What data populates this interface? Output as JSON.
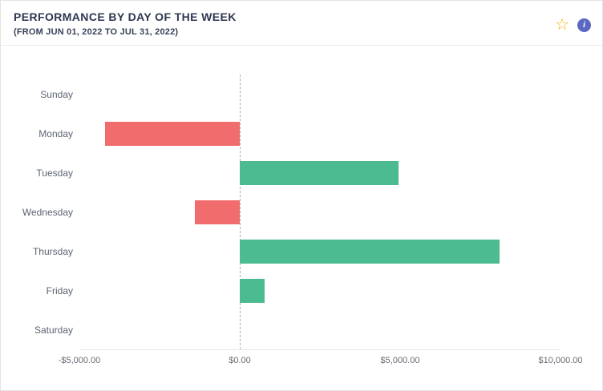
{
  "header": {
    "title": "PERFORMANCE BY DAY OF THE WEEK",
    "subtitle": "(FROM JUN 01, 2022 TO JUL 31, 2022)"
  },
  "toolbar": {
    "star_glyph": "☆",
    "info_glyph": "i"
  },
  "chart_data": {
    "type": "bar",
    "orientation": "horizontal",
    "title": "PERFORMANCE BY DAY OF THE WEEK",
    "subtitle": "(FROM JUN 01, 2022 TO JUL 31, 2022)",
    "categories": [
      "Sunday",
      "Monday",
      "Tuesday",
      "Wednesday",
      "Thursday",
      "Friday",
      "Saturday"
    ],
    "values": [
      0,
      -4200,
      4950,
      -1400,
      8100,
      775,
      0
    ],
    "xlim": [
      -5000,
      10000
    ],
    "x_ticks": [
      {
        "value": -5000,
        "label": "-$5,000.00"
      },
      {
        "value": 0,
        "label": "$0.00"
      },
      {
        "value": 5000,
        "label": "$5,000.00"
      },
      {
        "value": 10000,
        "label": "$10,000.00"
      }
    ],
    "grid": "dashed zero line only",
    "legend": "none",
    "positive_color": "#4cbb8f",
    "negative_color": "#f16c6c"
  }
}
